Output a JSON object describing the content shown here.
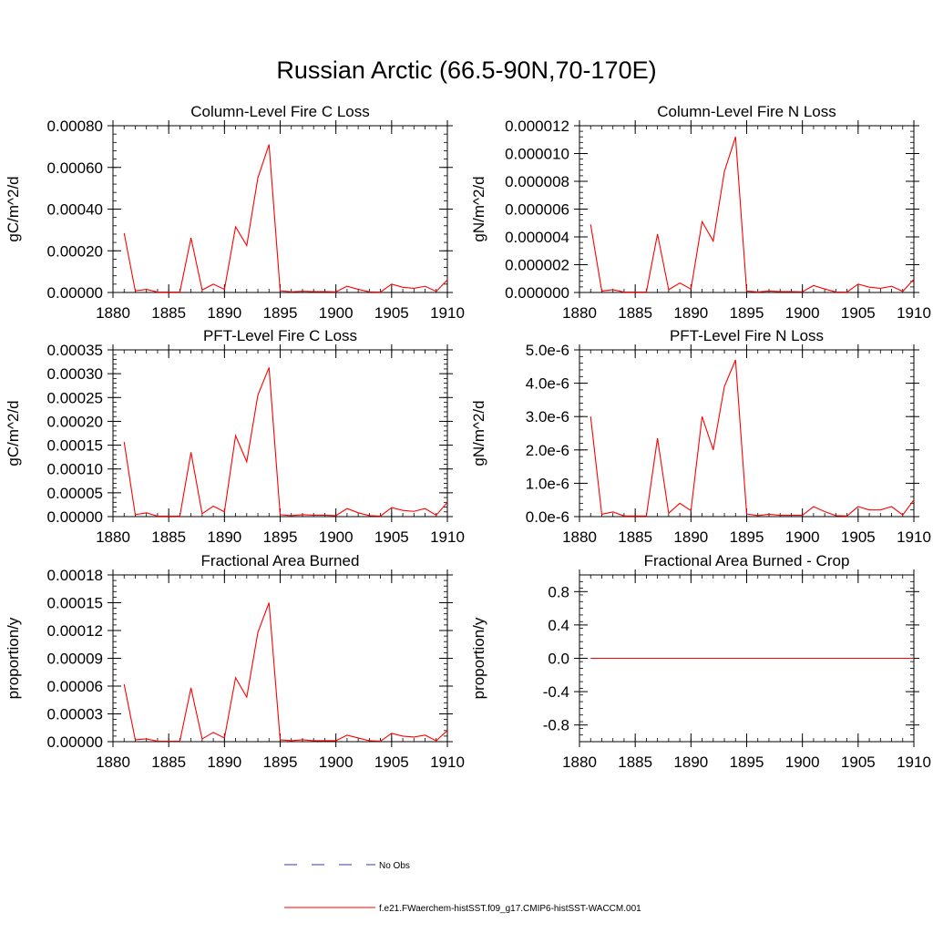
{
  "title": "Russian Arctic (66.5-90N,70-170E)",
  "legend": {
    "obs_label": "No Obs",
    "model_label": "f.e21.FWaerchem-histSST.f09_g17.CMIP6-histSST-WACCM.001",
    "obs_color": "#3a3aa8",
    "model_color": "#ff0000"
  },
  "chart_data": [
    {
      "type": "line",
      "title": "Column-Level Fire C Loss",
      "ylabel": "gC/m^2/d",
      "xlim": [
        1880,
        1910
      ],
      "ylim": [
        0,
        0.0008
      ],
      "xticks": [
        1880,
        1885,
        1890,
        1895,
        1900,
        1905,
        1910
      ],
      "xtick_labels": [
        "1880",
        "1885",
        "1890",
        "1895",
        "1900",
        "1905",
        "1910"
      ],
      "yticks": [
        0,
        0.0002,
        0.0004,
        0.0006,
        0.0008
      ],
      "ytick_labels": [
        "0.00000",
        "0.00020",
        "0.00040",
        "0.00060",
        "0.00080"
      ],
      "x": [
        1881,
        1882,
        1883,
        1884,
        1885,
        1886,
        1887,
        1888,
        1889,
        1890,
        1891,
        1892,
        1893,
        1894,
        1895,
        1896,
        1897,
        1898,
        1899,
        1900,
        1901,
        1902,
        1903,
        1904,
        1905,
        1906,
        1907,
        1908,
        1909,
        1910
      ],
      "series": [
        {
          "values": [
            0.000285,
            8e-06,
            1.5e-05,
            2e-06,
            2e-06,
            2e-06,
            0.000262,
            1.2e-05,
            4e-05,
            1.5e-05,
            0.000315,
            0.000225,
            0.00055,
            0.00071,
            8e-06,
            3e-06,
            6e-06,
            4e-06,
            4e-06,
            3e-06,
            3e-05,
            1.5e-05,
            3e-06,
            2e-06,
            4e-05,
            2.5e-05,
            2e-05,
            3e-05,
            5e-06,
            6e-05
          ],
          "color": "#ff0000"
        }
      ]
    },
    {
      "type": "line",
      "title": "Column-Level Fire N Loss",
      "ylabel": "gN/m^2/d",
      "xlim": [
        1880,
        1910
      ],
      "ylim": [
        0,
        1.2e-05
      ],
      "xticks": [
        1880,
        1885,
        1890,
        1895,
        1900,
        1905,
        1910
      ],
      "xtick_labels": [
        "1880",
        "1885",
        "1890",
        "1895",
        "1900",
        "1905",
        "1910"
      ],
      "yticks": [
        0,
        2e-06,
        4e-06,
        6e-06,
        8e-06,
        1e-05,
        1.2e-05
      ],
      "ytick_labels": [
        "0.000000",
        "0.000002",
        "0.000004",
        "0.000006",
        "0.000008",
        "0.000010",
        "0.000012"
      ],
      "x": [
        1881,
        1882,
        1883,
        1884,
        1885,
        1886,
        1887,
        1888,
        1889,
        1890,
        1891,
        1892,
        1893,
        1894,
        1895,
        1896,
        1897,
        1898,
        1899,
        1900,
        1901,
        1902,
        1903,
        1904,
        1905,
        1906,
        1907,
        1908,
        1909,
        1910
      ],
      "series": [
        {
          "values": [
            4.9e-06,
            1e-07,
            2e-07,
            3e-08,
            3e-08,
            3e-08,
            4.2e-06,
            2e-07,
            6.8e-07,
            2.5e-07,
            5.1e-06,
            3.7e-06,
            8.7e-06,
            1.12e-05,
            1e-07,
            4e-08,
            1e-07,
            6e-08,
            6e-08,
            5e-08,
            5e-07,
            2.5e-07,
            4e-08,
            3e-08,
            6e-07,
            3.8e-07,
            3e-07,
            4.5e-07,
            8e-08,
            9.5e-07
          ],
          "color": "#ff0000"
        }
      ]
    },
    {
      "type": "line",
      "title": "PFT-Level Fire C Loss",
      "ylabel": "gC/m^2/d",
      "xlim": [
        1880,
        1910
      ],
      "ylim": [
        0,
        0.00035
      ],
      "xticks": [
        1880,
        1885,
        1890,
        1895,
        1900,
        1905,
        1910
      ],
      "xtick_labels": [
        "1880",
        "1885",
        "1890",
        "1895",
        "1900",
        "1905",
        "1910"
      ],
      "yticks": [
        0,
        5e-05,
        0.0001,
        0.00015,
        0.0002,
        0.00025,
        0.0003,
        0.00035
      ],
      "ytick_labels": [
        "0.00000",
        "0.00005",
        "0.00010",
        "0.00015",
        "0.00020",
        "0.00025",
        "0.00030",
        "0.00035"
      ],
      "x": [
        1881,
        1882,
        1883,
        1884,
        1885,
        1886,
        1887,
        1888,
        1889,
        1890,
        1891,
        1892,
        1893,
        1894,
        1895,
        1896,
        1897,
        1898,
        1899,
        1900,
        1901,
        1902,
        1903,
        1904,
        1905,
        1906,
        1907,
        1908,
        1909,
        1910
      ],
      "series": [
        {
          "values": [
            0.000157,
            4e-06,
            8e-06,
            1e-06,
            1e-06,
            1e-06,
            0.000135,
            6e-06,
            2.2e-05,
            1e-05,
            0.00017,
            0.000115,
            0.000255,
            0.000313,
            4e-06,
            2e-06,
            4e-06,
            3e-06,
            3e-06,
            2e-06,
            1.7e-05,
            8e-06,
            2e-06,
            1e-06,
            1.9e-05,
            1.3e-05,
            1.1e-05,
            1.7e-05,
            3e-06,
            3e-05
          ],
          "color": "#ff0000"
        }
      ]
    },
    {
      "type": "line",
      "title": "PFT-Level Fire N Loss",
      "ylabel": "gN/m^2/d",
      "xlim": [
        1880,
        1910
      ],
      "ylim": [
        0,
        5e-06
      ],
      "xticks": [
        1880,
        1885,
        1890,
        1895,
        1900,
        1905,
        1910
      ],
      "xtick_labels": [
        "1880",
        "1885",
        "1890",
        "1895",
        "1900",
        "1905",
        "1910"
      ],
      "yticks": [
        0,
        1e-06,
        2e-06,
        3e-06,
        4e-06,
        5e-06
      ],
      "ytick_labels": [
        "0.0e-6",
        "1.0e-6",
        "2.0e-6",
        "3.0e-6",
        "4.0e-6",
        "5.0e-6"
      ],
      "x": [
        1881,
        1882,
        1883,
        1884,
        1885,
        1886,
        1887,
        1888,
        1889,
        1890,
        1891,
        1892,
        1893,
        1894,
        1895,
        1896,
        1897,
        1898,
        1899,
        1900,
        1901,
        1902,
        1903,
        1904,
        1905,
        1906,
        1907,
        1908,
        1909,
        1910
      ],
      "series": [
        {
          "values": [
            3e-06,
            7e-08,
            1.4e-07,
            2e-08,
            2e-08,
            2e-08,
            2.35e-06,
            1e-07,
            4e-07,
            1.8e-07,
            3e-06,
            2e-06,
            3.9e-06,
            4.7e-06,
            8e-08,
            3e-08,
            7e-08,
            4e-08,
            4e-08,
            4e-08,
            3e-07,
            1.5e-07,
            3e-08,
            2e-08,
            3e-07,
            2e-07,
            2e-07,
            3e-07,
            5e-08,
            5e-07
          ],
          "color": "#ff0000"
        }
      ]
    },
    {
      "type": "line",
      "title": "Fractional Area Burned",
      "ylabel": "proportion/y",
      "xlim": [
        1880,
        1910
      ],
      "ylim": [
        0,
        0.00018
      ],
      "xticks": [
        1880,
        1885,
        1890,
        1895,
        1900,
        1905,
        1910
      ],
      "xtick_labels": [
        "1880",
        "1885",
        "1890",
        "1895",
        "1900",
        "1905",
        "1910"
      ],
      "yticks": [
        0,
        3e-05,
        6e-05,
        9e-05,
        0.00012,
        0.00015,
        0.00018
      ],
      "ytick_labels": [
        "0.00000",
        "0.00003",
        "0.00006",
        "0.00009",
        "0.00012",
        "0.00015",
        "0.00018"
      ],
      "x": [
        1881,
        1882,
        1883,
        1884,
        1885,
        1886,
        1887,
        1888,
        1889,
        1890,
        1891,
        1892,
        1893,
        1894,
        1895,
        1896,
        1897,
        1898,
        1899,
        1900,
        1901,
        1902,
        1903,
        1904,
        1905,
        1906,
        1907,
        1908,
        1909,
        1910
      ],
      "series": [
        {
          "values": [
            6.2e-05,
            2e-06,
            3e-06,
            5e-07,
            5e-07,
            5e-07,
            5.8e-05,
            3e-06,
            1e-05,
            4e-06,
            6.9e-05,
            4.8e-05,
            0.000118,
            0.00015,
            2e-06,
            1e-06,
            2e-06,
            1e-06,
            1e-06,
            1e-06,
            7e-06,
            4e-06,
            1e-06,
            5e-07,
            9e-06,
            6e-06,
            5e-06,
            7e-06,
            1e-06,
            1.2e-05
          ],
          "color": "#ff0000"
        }
      ]
    },
    {
      "type": "line",
      "title": "Fractional Area Burned - Crop",
      "ylabel": "proportion/y",
      "xlim": [
        1880,
        1910
      ],
      "ylim": [
        -1,
        1
      ],
      "xticks": [
        1880,
        1885,
        1890,
        1895,
        1900,
        1905,
        1910
      ],
      "xtick_labels": [
        "1880",
        "1885",
        "1890",
        "1895",
        "1900",
        "1905",
        "1910"
      ],
      "yticks": [
        -0.8,
        -0.4,
        0,
        0.4,
        0.8
      ],
      "ytick_labels": [
        "-0.8",
        "-0.4",
        "0.0",
        "0.4",
        "0.8"
      ],
      "x": [
        1881,
        1882,
        1883,
        1884,
        1885,
        1886,
        1887,
        1888,
        1889,
        1890,
        1891,
        1892,
        1893,
        1894,
        1895,
        1896,
        1897,
        1898,
        1899,
        1900,
        1901,
        1902,
        1903,
        1904,
        1905,
        1906,
        1907,
        1908,
        1909,
        1910
      ],
      "series": [
        {
          "values": [
            0,
            0,
            0,
            0,
            0,
            0,
            0,
            0,
            0,
            0,
            0,
            0,
            0,
            0,
            0,
            0,
            0,
            0,
            0,
            0,
            0,
            0,
            0,
            0,
            0,
            0,
            0,
            0,
            0,
            0
          ],
          "color": "#ff0000"
        }
      ]
    }
  ]
}
